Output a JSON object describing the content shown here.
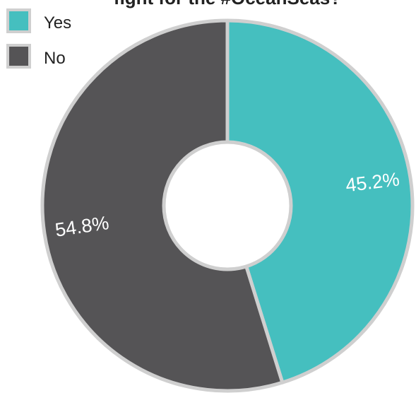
{
  "chart_data": {
    "type": "pie",
    "title": "fight for the #OceanSeas?",
    "hole": true,
    "categories": [
      "Yes",
      "No"
    ],
    "values": [
      45.2,
      54.8
    ],
    "data_labels": [
      "45.2%",
      "54.8%"
    ],
    "colors": [
      "#45bfbf",
      "#555456"
    ],
    "outline_color": "#cfcfcf",
    "legend": {
      "position": "top-left",
      "entries": [
        {
          "label": "Yes",
          "color": "#45bfbf"
        },
        {
          "label": "No",
          "color": "#555456"
        }
      ]
    }
  }
}
